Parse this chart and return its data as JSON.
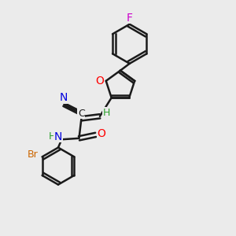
{
  "background_color": "#ebebeb",
  "bond_color": "#1a1a1a",
  "bond_width": 1.8,
  "atom_colors": {
    "F": "#cc00cc",
    "O": "#ff0000",
    "N": "#0000dd",
    "Br": "#cc6600",
    "H": "#2ca02c",
    "C": "#1a1a1a"
  },
  "figsize": [
    3.0,
    3.0
  ],
  "dpi": 100
}
